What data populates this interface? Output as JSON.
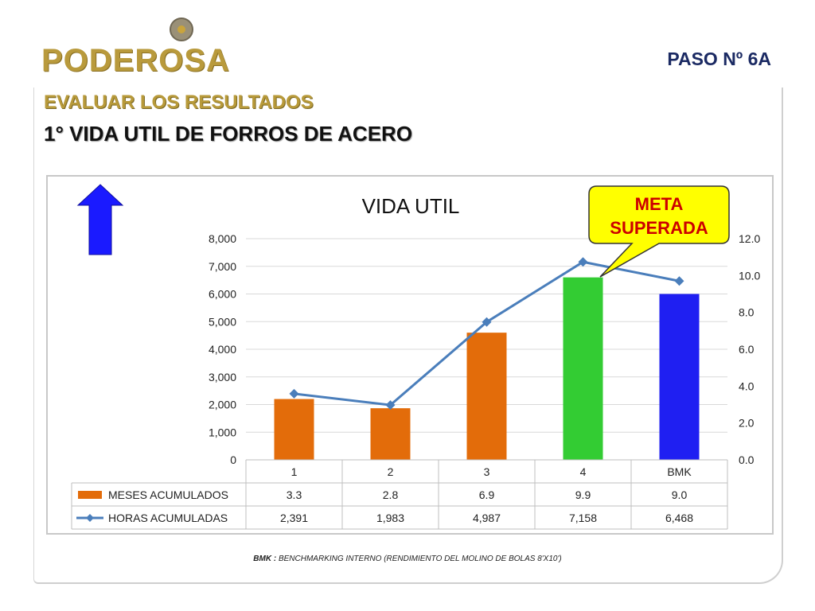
{
  "logo": {
    "text": "PODEROSA"
  },
  "header": {
    "step": "PASO  Nº 6A"
  },
  "section": {
    "title": "EVALUAR LOS RESULTADOS",
    "subtitle": "1° VIDA UTIL DE FORROS DE ACERO"
  },
  "callout": {
    "line1": "META",
    "line2": "SUPERADA"
  },
  "footnote": {
    "label": "BMK :",
    "text": " BENCHMARKING INTERNO (RENDIMIENTO DEL MOLINO DE BOLAS 8'X10')"
  },
  "colors": {
    "orange": "#e36c0a",
    "green": "#33cc33",
    "blue": "#1f1ff2",
    "line": "#4a7ebb",
    "arrow": "#1a1aff",
    "callout": "#ffff00",
    "callout_text": "#cc0000"
  },
  "chart_data": {
    "type": "bar",
    "title": "VIDA UTIL",
    "categories": [
      "1",
      "2",
      "3",
      "4",
      "BMK"
    ],
    "y_left": {
      "ticks": [
        "0",
        "1,000",
        "2,000",
        "3,000",
        "4,000",
        "5,000",
        "6,000",
        "7,000",
        "8,000"
      ],
      "min": 0,
      "max": 8000
    },
    "y_right": {
      "ticks": [
        "0.0",
        "2.0",
        "4.0",
        "6.0",
        "8.0",
        "10.0",
        "12.0"
      ],
      "min": 0,
      "max": 12
    },
    "series": [
      {
        "name": "MESES ACUMULADOS",
        "kind": "bar",
        "axis": "right",
        "values": [
          3.3,
          2.8,
          6.9,
          9.9,
          9.0
        ],
        "labels": [
          "3.3",
          "2.8",
          "6.9",
          "9.9",
          "9.0"
        ],
        "bar_colors": [
          "#e36c0a",
          "#e36c0a",
          "#e36c0a",
          "#33cc33",
          "#1f1ff2"
        ]
      },
      {
        "name": "HORAS ACUMULADAS",
        "kind": "line",
        "axis": "left",
        "values": [
          2391,
          1983,
          4987,
          7158,
          6468
        ],
        "labels": [
          "2,391",
          "1,983",
          "4,987",
          "7,158",
          "6,468"
        ]
      }
    ]
  }
}
